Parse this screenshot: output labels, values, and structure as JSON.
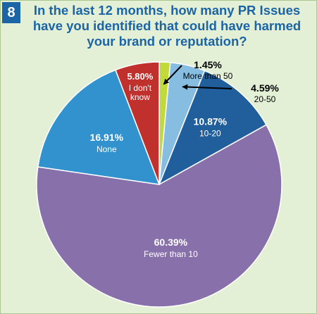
{
  "figure_number": "8",
  "title_lines": [
    "In the last 12 months, how many PR Issues",
    "have you identified that could have harmed",
    "your brand or reputation?"
  ],
  "chart_data": {
    "type": "pie",
    "title": "In the last 12 months, how many PR Issues have you identified that could have harmed your brand or reputation?",
    "slices": [
      {
        "label": "More than 50",
        "value": 1.45,
        "display": "1.45%",
        "color": "#c2d93a"
      },
      {
        "label": "20-50",
        "value": 4.59,
        "display": "4.59%",
        "color": "#86bde0"
      },
      {
        "label": "10-20",
        "value": 10.87,
        "display": "10.87%",
        "color": "#215f9c"
      },
      {
        "label": "Fewer than 10",
        "value": 60.39,
        "display": "60.39%",
        "color": "#8870ab"
      },
      {
        "label": "None",
        "value": 16.91,
        "display": "16.91%",
        "color": "#3192ce"
      },
      {
        "label": "I don't know",
        "label_lines": [
          "I don't",
          "know"
        ],
        "value": 5.8,
        "display": "5.80%",
        "color": "#c0302d"
      }
    ]
  }
}
